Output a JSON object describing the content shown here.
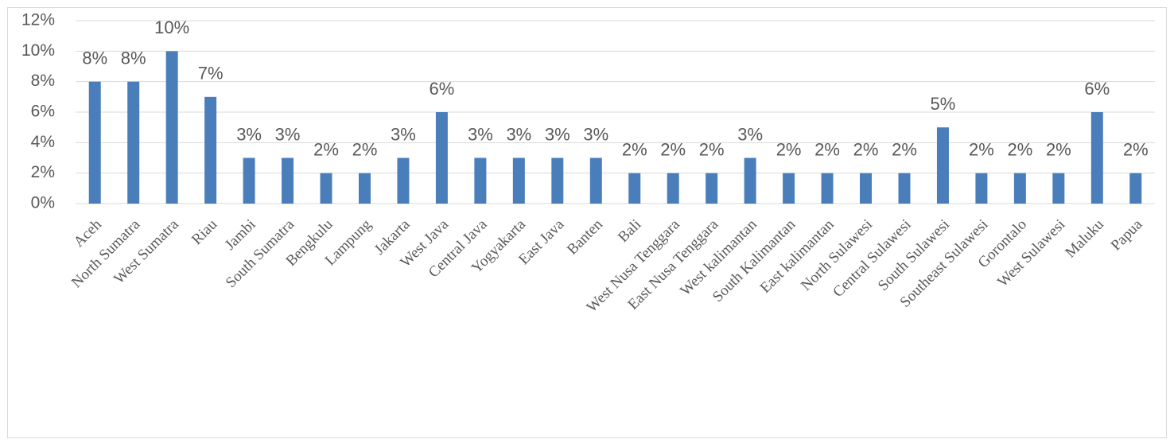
{
  "chart_data": {
    "type": "bar",
    "categories": [
      "Aceh",
      "North Sumatra",
      "West Sumatra",
      "Riau",
      "Jambi",
      "South Sumatra",
      "Bengkulu",
      "Lampung",
      "Jakarta",
      "West Java",
      "Central Java",
      "Yogyakarta",
      "East Java",
      "Banten",
      "Bali",
      "West Nusa Tenggara",
      "East Nusa Tenggara",
      "West kalimantan",
      "South Kalimantan",
      "East kalimantan",
      "North Sulawesi",
      "Central Sulawesi",
      "South Sulawesi",
      "Southeast Sulawesi",
      "Gorontalo",
      "West Sulawesi",
      "Maluku",
      "Papua"
    ],
    "values": [
      8,
      8,
      10,
      7,
      3,
      3,
      2,
      2,
      3,
      6,
      3,
      3,
      3,
      3,
      2,
      2,
      2,
      3,
      2,
      2,
      2,
      2,
      5,
      2,
      2,
      2,
      6,
      2
    ],
    "value_labels": [
      "8%",
      "8%",
      "10%",
      "7%",
      "3%",
      "3%",
      "2%",
      "2%",
      "3%",
      "6%",
      "3%",
      "3%",
      "3%",
      "3%",
      "2%",
      "2%",
      "2%",
      "3%",
      "2%",
      "2%",
      "2%",
      "2%",
      "5%",
      "2%",
      "2%",
      "2%",
      "6%",
      "2%"
    ],
    "color": "#4a7ebb",
    "ylim": [
      0,
      12
    ],
    "yticks": [
      {
        "value": 0,
        "label": "0%"
      },
      {
        "value": 2,
        "label": "2%"
      },
      {
        "value": 4,
        "label": "4%"
      },
      {
        "value": 6,
        "label": "6%"
      },
      {
        "value": 8,
        "label": "8%"
      },
      {
        "value": 10,
        "label": "10%"
      },
      {
        "value": 12,
        "label": "12%"
      }
    ],
    "grid": true
  }
}
